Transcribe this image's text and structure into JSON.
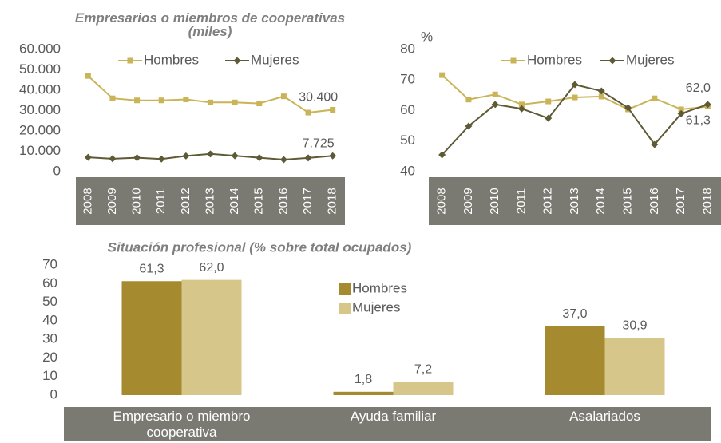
{
  "chart_data": [
    {
      "type": "line",
      "title": "Empresarios o miembros de cooperativas (miles)",
      "categories": [
        "2008",
        "2009",
        "2010",
        "2011",
        "2012",
        "2013",
        "2014",
        "2015",
        "2016",
        "2017",
        "2018"
      ],
      "series": [
        {
          "name": "Hombres",
          "color": "#c9b458",
          "marker": "square",
          "values": [
            47000,
            36000,
            35000,
            35000,
            35500,
            34000,
            34000,
            33500,
            37000,
            29000,
            30400
          ],
          "value_labels": [
            null,
            null,
            null,
            null,
            null,
            null,
            null,
            null,
            null,
            null,
            "30.400"
          ]
        },
        {
          "name": "Mujeres",
          "color": "#5e5a35",
          "marker": "diamond",
          "values": [
            7000,
            6300,
            6800,
            6200,
            7700,
            8700,
            7800,
            6800,
            5900,
            6700,
            7725
          ],
          "value_labels": [
            null,
            null,
            null,
            null,
            null,
            null,
            null,
            null,
            null,
            null,
            "7.725"
          ]
        }
      ],
      "ylim": [
        0,
        60000
      ],
      "yticks": [
        0,
        {
          "value": 10000,
          "label": "10.000"
        },
        {
          "value": 20000,
          "label": "20.000"
        },
        {
          "value": 30000,
          "label": "30.000"
        },
        {
          "value": 40000,
          "label": "40.000"
        },
        {
          "value": 50000,
          "label": "50.000"
        },
        {
          "value": 60000,
          "label": "60.000"
        }
      ],
      "legend": "top"
    },
    {
      "type": "line",
      "ylabel": "%",
      "categories": [
        "2008",
        "2009",
        "2010",
        "2011",
        "2012",
        "2013",
        "2014",
        "2015",
        "2016",
        "2017",
        "2018"
      ],
      "series": [
        {
          "name": "Hombres",
          "color": "#c9b458",
          "marker": "square",
          "values": [
            71.6,
            63.6,
            65.3,
            62,
            63,
            64.3,
            64.6,
            60.4,
            64,
            60.4,
            61.3
          ],
          "value_labels": [
            null,
            null,
            null,
            null,
            null,
            null,
            null,
            null,
            null,
            null,
            "61,3"
          ]
        },
        {
          "name": "Mujeres",
          "color": "#5e5a35",
          "marker": "diamond",
          "values": [
            45.5,
            54.9,
            62,
            60.6,
            57.5,
            68.5,
            66.4,
            60.9,
            48.9,
            59,
            62.0
          ],
          "value_labels": [
            null,
            null,
            null,
            null,
            null,
            null,
            null,
            null,
            null,
            null,
            "62,0"
          ]
        }
      ],
      "ylim": [
        40,
        80
      ],
      "yticks": [
        40,
        50,
        60,
        70,
        80
      ],
      "legend": "top"
    },
    {
      "type": "bar",
      "title": "Situación profesional (% sobre total ocupados)",
      "categories": [
        "Empresario o miembro cooperativa",
        "Ayuda familiar",
        "Asalariados"
      ],
      "series": [
        {
          "name": "Hombres",
          "color": "#a58a2f",
          "values": [
            61.3,
            1.8,
            37.0
          ],
          "value_labels": [
            "61,3",
            "1,8",
            "37,0"
          ]
        },
        {
          "name": "Mujeres",
          "color": "#d6c68a",
          "values": [
            62.0,
            7.2,
            30.9
          ],
          "value_labels": [
            "62,0",
            "7,2",
            "30,9"
          ]
        }
      ],
      "ylim": [
        0,
        70
      ],
      "yticks": [
        0,
        10,
        20,
        30,
        40,
        50,
        60,
        70
      ],
      "legend": "center"
    }
  ]
}
